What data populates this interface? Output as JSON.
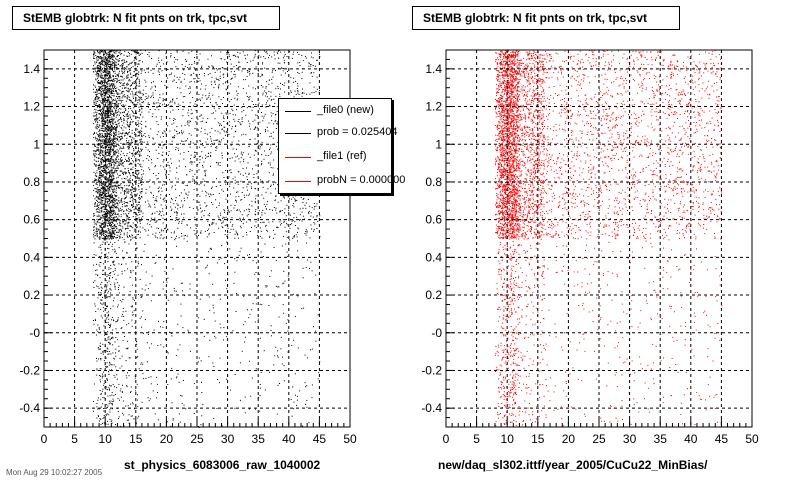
{
  "colors": {
    "new": "#000000",
    "ref": "#ff0000",
    "grid": "#000000",
    "background": "#ffffff"
  },
  "legend": {
    "entries": [
      {
        "label": "_file0 (new)",
        "color": "#000000"
      },
      {
        "label": "prob = 0.025404",
        "color": "#000000"
      },
      {
        "label": "_file1 (ref)",
        "color": "#ff0000"
      },
      {
        "label": "probN = 0.000000",
        "color": "#ff0000"
      }
    ]
  },
  "footer_text": "Mon Aug 29 10:02:27 2005",
  "chart_data": [
    {
      "type": "scatter",
      "title": "StEMB globtrk: N fit pnts on trk, tpc,svt",
      "xlabel": "st_physics_6083006_raw_1040002",
      "ylabel": "",
      "xlim": [
        0,
        50
      ],
      "ylim": [
        -0.5,
        1.5
      ],
      "x_ticks": [
        0,
        5,
        10,
        15,
        20,
        25,
        30,
        35,
        40,
        45,
        50
      ],
      "y_ticks": [
        -0.4,
        -0.2,
        0,
        0.2,
        0.4,
        0.6,
        0.8,
        1,
        1.2,
        1.4
      ],
      "y_tick_labels": [
        "-0.4",
        "-0.2",
        "-0",
        "0.2",
        "0.4",
        "0.6",
        "0.8",
        "1",
        "1.2",
        "1.4"
      ],
      "grid": true,
      "series": [
        {
          "color": "#000000",
          "dense_region": {
            "x": [
              8,
              45
            ],
            "y": [
              0.5,
              1.5
            ]
          },
          "sparse_region": {
            "x": [
              8,
              45
            ],
            "y": [
              -0.5,
              0.5
            ]
          },
          "peak_x": 10
        }
      ]
    },
    {
      "type": "scatter",
      "title": "StEMB globtrk: N fit pnts on trk, tpc,svt",
      "xlabel": "new/daq_sl302.ittf/year_2005/CuCu22_MinBias/",
      "ylabel": "",
      "xlim": [
        0,
        50
      ],
      "ylim": [
        -0.5,
        1.5
      ],
      "x_ticks": [
        0,
        5,
        10,
        15,
        20,
        25,
        30,
        35,
        40,
        45,
        50
      ],
      "y_ticks": [
        -0.4,
        -0.2,
        0,
        0.2,
        0.4,
        0.6,
        0.8,
        1,
        1.2,
        1.4
      ],
      "y_tick_labels": [
        "-0.4",
        "-0.2",
        "-0",
        "0.2",
        "0.4",
        "0.6",
        "0.8",
        "1",
        "1.2",
        "1.4"
      ],
      "grid": true,
      "series": [
        {
          "color": "#ff0000",
          "dense_region": {
            "x": [
              8,
              45
            ],
            "y": [
              0.5,
              1.5
            ]
          },
          "sparse_region": {
            "x": [
              8,
              45
            ],
            "y": [
              -0.5,
              0.5
            ]
          },
          "peak_x": 10
        }
      ]
    }
  ]
}
